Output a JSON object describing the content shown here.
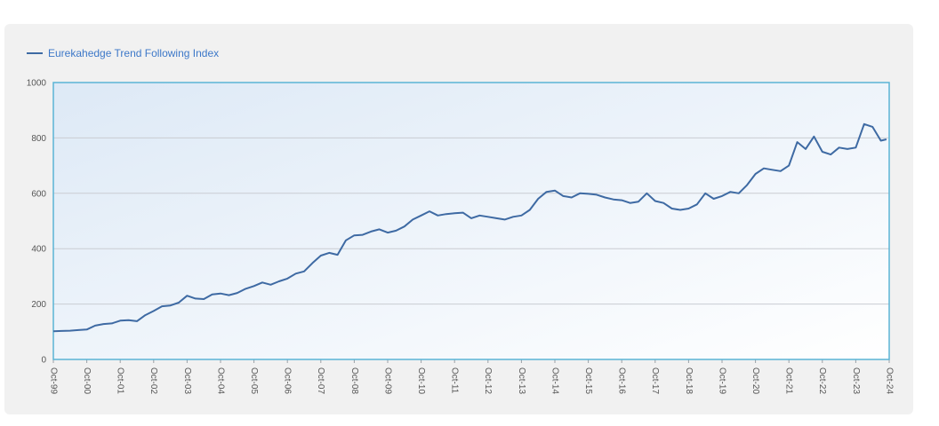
{
  "legend": {
    "label": "Eurekahedge Trend Following Index"
  },
  "colors": {
    "series": "#3e6aa3",
    "legend_text": "#3d78c8",
    "plot_border": "#5ab4d6",
    "grid": "#c9ccd2"
  },
  "chart_data": {
    "type": "line",
    "title": "",
    "xlabel": "",
    "ylabel": "",
    "ylim": [
      0,
      1000
    ],
    "yticks": [
      0,
      200,
      400,
      600,
      800,
      1000
    ],
    "xticks": [
      "Oct-99",
      "Oct-00",
      "Oct-01",
      "Oct-02",
      "Oct-03",
      "Oct-04",
      "Oct-05",
      "Oct-06",
      "Oct-07",
      "Oct-08",
      "Oct-09",
      "Oct-10",
      "Oct-11",
      "Oct-12",
      "Oct-13",
      "Oct-14",
      "Oct-15",
      "Oct-16",
      "Oct-17",
      "Oct-18",
      "Oct-19",
      "Oct-20",
      "Oct-21",
      "Oct-22",
      "Oct-23",
      "Oct-24"
    ],
    "grid": true,
    "legend_position": "top-left",
    "series": [
      {
        "name": "Eurekahedge Trend Following Index",
        "points": [
          [
            "Oct-99",
            102
          ],
          [
            "Jan-00",
            103
          ],
          [
            "Apr-00",
            104
          ],
          [
            "Jul-00",
            106
          ],
          [
            "Oct-00",
            108
          ],
          [
            "Jan-01",
            122
          ],
          [
            "Apr-01",
            128
          ],
          [
            "Jul-01",
            130
          ],
          [
            "Oct-01",
            140
          ],
          [
            "Jan-02",
            142
          ],
          [
            "Apr-02",
            138
          ],
          [
            "Jul-02",
            160
          ],
          [
            "Oct-02",
            175
          ],
          [
            "Jan-03",
            192
          ],
          [
            "Apr-03",
            195
          ],
          [
            "Jul-03",
            205
          ],
          [
            "Oct-03",
            230
          ],
          [
            "Jan-04",
            220
          ],
          [
            "Apr-04",
            218
          ],
          [
            "Jul-04",
            235
          ],
          [
            "Oct-04",
            238
          ],
          [
            "Jan-05",
            232
          ],
          [
            "Apr-05",
            240
          ],
          [
            "Jul-05",
            255
          ],
          [
            "Oct-05",
            265
          ],
          [
            "Jan-06",
            278
          ],
          [
            "Apr-06",
            270
          ],
          [
            "Jul-06",
            282
          ],
          [
            "Oct-06",
            292
          ],
          [
            "Jan-07",
            310
          ],
          [
            "Apr-07",
            318
          ],
          [
            "Jul-07",
            348
          ],
          [
            "Oct-07",
            375
          ],
          [
            "Jan-08",
            385
          ],
          [
            "Apr-08",
            378
          ],
          [
            "Jul-08",
            430
          ],
          [
            "Oct-08",
            448
          ],
          [
            "Jan-09",
            450
          ],
          [
            "Apr-09",
            462
          ],
          [
            "Jul-09",
            470
          ],
          [
            "Oct-09",
            458
          ],
          [
            "Jan-10",
            465
          ],
          [
            "Apr-10",
            480
          ],
          [
            "Jul-10",
            505
          ],
          [
            "Oct-10",
            520
          ],
          [
            "Jan-11",
            535
          ],
          [
            "Apr-11",
            520
          ],
          [
            "Jul-11",
            525
          ],
          [
            "Oct-11",
            528
          ],
          [
            "Jan-12",
            530
          ],
          [
            "Apr-12",
            510
          ],
          [
            "Jul-12",
            520
          ],
          [
            "Oct-12",
            515
          ],
          [
            "Jan-13",
            510
          ],
          [
            "Apr-13",
            505
          ],
          [
            "Jul-13",
            515
          ],
          [
            "Oct-13",
            520
          ],
          [
            "Jan-14",
            540
          ],
          [
            "Apr-14",
            580
          ],
          [
            "Jul-14",
            605
          ],
          [
            "Oct-14",
            610
          ],
          [
            "Jan-15",
            590
          ],
          [
            "Apr-15",
            585
          ],
          [
            "Jul-15",
            600
          ],
          [
            "Oct-15",
            598
          ],
          [
            "Jan-16",
            595
          ],
          [
            "Apr-16",
            585
          ],
          [
            "Jul-16",
            578
          ],
          [
            "Oct-16",
            575
          ],
          [
            "Jan-17",
            565
          ],
          [
            "Apr-17",
            570
          ],
          [
            "Jul-17",
            600
          ],
          [
            "Oct-17",
            572
          ],
          [
            "Jan-18",
            565
          ],
          [
            "Apr-18",
            545
          ],
          [
            "Jul-18",
            540
          ],
          [
            "Oct-18",
            545
          ],
          [
            "Jan-19",
            560
          ],
          [
            "Apr-19",
            600
          ],
          [
            "Jul-19",
            580
          ],
          [
            "Oct-19",
            590
          ],
          [
            "Jan-20",
            605
          ],
          [
            "Apr-20",
            600
          ],
          [
            "Jul-20",
            630
          ],
          [
            "Oct-20",
            670
          ],
          [
            "Jan-21",
            690
          ],
          [
            "Apr-21",
            685
          ],
          [
            "Jul-21",
            680
          ],
          [
            "Oct-21",
            700
          ],
          [
            "Jan-22",
            785
          ],
          [
            "Apr-22",
            760
          ],
          [
            "Jul-22",
            805
          ],
          [
            "Oct-22",
            750
          ],
          [
            "Jan-23",
            740
          ],
          [
            "Apr-23",
            765
          ],
          [
            "Jul-23",
            760
          ],
          [
            "Oct-23",
            765
          ],
          [
            "Jan-24",
            850
          ],
          [
            "Apr-24",
            840
          ],
          [
            "Jul-24",
            790
          ],
          [
            "Sep-24",
            795
          ]
        ]
      }
    ]
  }
}
